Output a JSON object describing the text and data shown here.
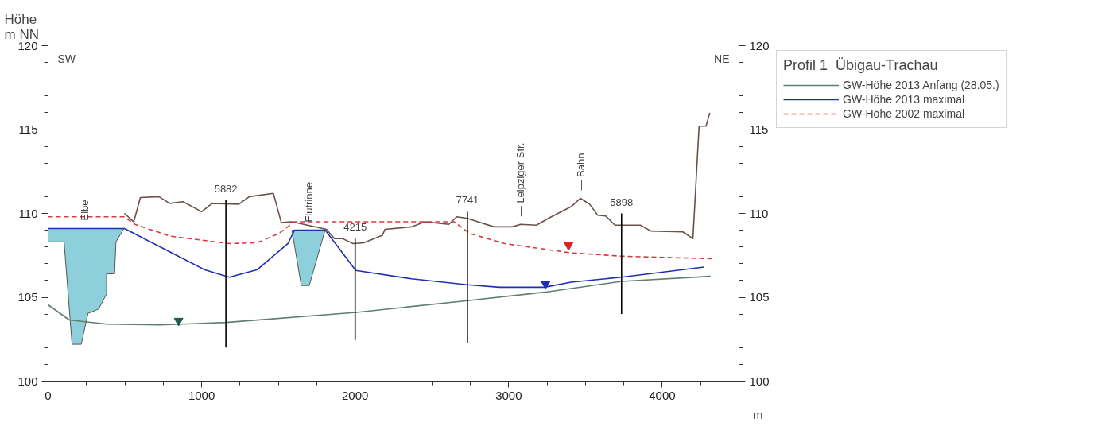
{
  "chart_data": {
    "type": "line",
    "ylabel": "Höhe\nm NN",
    "xlabel": "m",
    "legend_title": "Profil 1  Übigau-Trachau",
    "legend": "right",
    "xlim": [
      0,
      4500
    ],
    "xticks": [
      0,
      1000,
      2000,
      3000,
      4000
    ],
    "ylim": [
      100,
      120
    ],
    "yticks": [
      100,
      105,
      110,
      115,
      120
    ],
    "y2lim": [
      100,
      120
    ],
    "y2ticks": [
      100,
      105,
      110,
      115,
      120
    ],
    "grid": false,
    "series": [
      {
        "type": "area",
        "color": "#8ecfdc",
        "x": [
          0,
          0,
          104,
          156,
          216,
          260,
          277,
          329,
          381,
          381,
          433,
          442,
          494
        ],
        "values": [
          109.1,
          108.3,
          108.3,
          102.2,
          102.2,
          104.05,
          104.1,
          104.3,
          105.2,
          106.4,
          106.4,
          108.3,
          109.1
        ]
      },
      {
        "type": "area",
        "color": "#8ecfdc",
        "x": [
          1588,
          1649,
          1701,
          1804
        ],
        "values": [
          109.0,
          105.7,
          105.7,
          109.0
        ]
      },
      {
        "color": "#6b5048",
        "x": [
          497,
          558,
          601,
          722,
          792,
          879,
          1000,
          1068,
          1242,
          1311,
          1467,
          1519,
          1588,
          1813,
          1865,
          1917,
          1987,
          2056,
          2178,
          2194,
          2367,
          2454,
          2610,
          2662,
          2731,
          2800,
          2904,
          3025,
          3077,
          3181,
          3268,
          3406,
          3467,
          3527,
          3579,
          3631,
          3692,
          3857,
          3926,
          4134,
          4200,
          4240,
          4285,
          4310
        ],
        "values": [
          110.0,
          109.5,
          110.95,
          111.0,
          110.6,
          110.7,
          110.1,
          110.6,
          110.55,
          111.0,
          111.2,
          109.45,
          109.5,
          109.05,
          108.5,
          108.5,
          108.2,
          108.25,
          108.7,
          109.05,
          109.2,
          109.5,
          109.35,
          109.8,
          109.7,
          109.5,
          109.2,
          109.2,
          109.35,
          109.3,
          109.75,
          110.4,
          110.9,
          110.55,
          109.9,
          109.85,
          109.3,
          109.3,
          108.95,
          108.9,
          108.5,
          115.2,
          115.2,
          116.0
        ]
      },
      {
        "name": "GW-Höhe 2013 Anfang (28.05.)",
        "color": "#5f7f6f",
        "x": [
          0,
          138,
          381,
          727,
          1159,
          2007,
          2731,
          3233,
          3735,
          4315
        ],
        "values": [
          104.55,
          103.65,
          103.4,
          103.35,
          103.5,
          104.1,
          104.8,
          105.3,
          105.95,
          106.25
        ]
      },
      {
        "name": "GW-Höhe 2013 maximal",
        "color": "#2030b0",
        "x": [
          0,
          497,
          827,
          1017,
          1181,
          1363,
          1562,
          1605,
          1805,
          2004,
          2367,
          2731,
          2939,
          3233,
          3406,
          3735,
          4272
        ],
        "values": [
          109.1,
          109.1,
          107.55,
          106.65,
          106.2,
          106.65,
          108.2,
          109.0,
          109.0,
          106.6,
          106.1,
          105.75,
          105.6,
          105.6,
          105.9,
          106.2,
          106.8
        ]
      },
      {
        "name": "GW-Höhe 2002 maximal",
        "color": "#d83a40",
        "line_style": "dashed",
        "x": [
          0,
          494,
          566,
          792,
          1181,
          1363,
          1502,
          1605,
          2645,
          2748,
          2973,
          3406,
          3735,
          4324
        ],
        "values": [
          109.8,
          109.8,
          109.35,
          108.65,
          108.2,
          108.25,
          108.8,
          109.5,
          109.5,
          108.8,
          108.2,
          107.65,
          107.45,
          107.3
        ]
      },
      {
        "color": "#000000",
        "x": [
          1158,
          1158
        ],
        "values": [
          110.8,
          102.0
        ]
      },
      {
        "color": "#000000",
        "x": [
          2000,
          2000
        ],
        "values": [
          108.5,
          102.45
        ]
      },
      {
        "color": "#000000",
        "x": [
          2731,
          2731
        ],
        "values": [
          110.1,
          102.3
        ]
      },
      {
        "color": "#000000",
        "x": [
          3735,
          3735
        ],
        "values": [
          110.0,
          104.0
        ]
      },
      {
        "type": "scatter",
        "marker": "triangle",
        "color": "#1f5a50",
        "x": [
          850
        ],
        "values": [
          103.6
        ]
      },
      {
        "type": "scatter",
        "marker": "triangle",
        "color": "#2030b0",
        "x": [
          3240
        ],
        "values": [
          105.8
        ]
      },
      {
        "type": "scatter",
        "marker": "triangle",
        "color": "#e02020",
        "x": [
          3390
        ],
        "values": [
          108.1
        ]
      }
    ],
    "annotations": [
      "SW",
      "NE",
      {
        "text": "Elbe",
        "x": 240,
        "y": 109.1
      },
      {
        "text": "Flutrinne",
        "x": 1696,
        "y": 109.0
      },
      {
        "text": "— Leipziger Str.",
        "x": 3077,
        "y": 109.35
      },
      {
        "text": "— Bahn",
        "x": 3467,
        "y": 110.9
      },
      {
        "text": "5882",
        "x": 1158,
        "y": 110.8
      },
      {
        "text": "4215",
        "x": 2000,
        "y": 108.5
      },
      {
        "text": "7741",
        "x": 2731,
        "y": 110.1
      },
      {
        "text": "5898",
        "x": 3735,
        "y": 110.0
      }
    ]
  }
}
